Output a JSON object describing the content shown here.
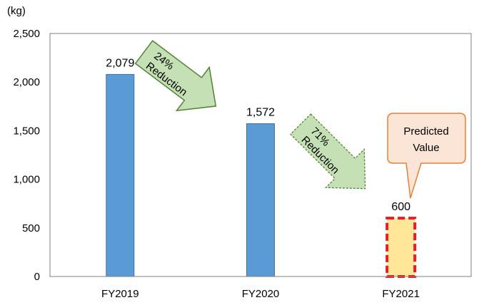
{
  "chart_data": {
    "type": "bar",
    "unit_label": "(kg)",
    "categories": [
      "FY2019",
      "FY2020",
      "FY2021"
    ],
    "values": [
      2079,
      1572,
      600
    ],
    "value_labels": [
      "2,079",
      "1,572",
      "600"
    ],
    "ylim": [
      0,
      2500
    ],
    "yticks": [
      0,
      500,
      1000,
      1500,
      2000,
      2500
    ],
    "ytick_labels": [
      "0",
      "500",
      "1,000",
      "1,500",
      "2,000",
      "2,500"
    ],
    "grid": false,
    "bar_color": "#5b9bd5",
    "predicted_bar": {
      "index": 2,
      "fill": "#ffe699",
      "border": "#e31e24"
    },
    "annotations": {
      "arrow1": {
        "line1": "24%",
        "line2": "Reduction",
        "fill": "#c5e0b4",
        "stroke": "#548235"
      },
      "arrow2": {
        "line1": "71%",
        "line2": "Reduction",
        "fill": "#c5e0b4",
        "stroke": "#548235"
      },
      "callout": {
        "line1": "Predicted",
        "line2": "Value",
        "fill": "#fbe5d6",
        "stroke": "#ed7d31"
      }
    }
  }
}
